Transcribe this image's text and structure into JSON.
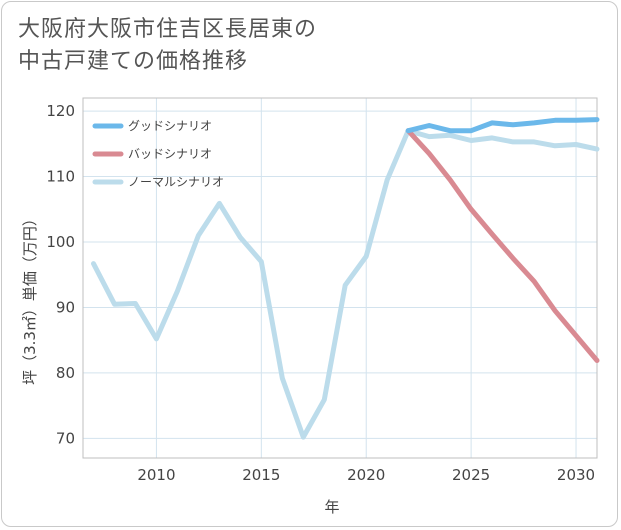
{
  "title": {
    "line1": "大阪府大阪市住吉区長居東の",
    "line2": "中古戸建ての価格推移"
  },
  "chart_data": {
    "type": "line",
    "title": "大阪府大阪市住吉区長居東の中古戸建ての価格推移",
    "xlabel": "年",
    "ylabel": "坪（3.3㎡）単価（万円）",
    "xlim": [
      2006.5,
      2031
    ],
    "ylim": [
      67,
      122
    ],
    "xticks": [
      2010,
      2015,
      2020,
      2025,
      2030
    ],
    "yticks": [
      70,
      80,
      90,
      100,
      110,
      120
    ],
    "grid": true,
    "legend_position": "top-left",
    "series": [
      {
        "name": "グッドシナリオ",
        "color": "#6bb8ea",
        "x": [
          2022,
          2023,
          2024,
          2025,
          2026,
          2027,
          2028,
          2029,
          2030,
          2031
        ],
        "y": [
          117,
          117.8,
          117,
          117,
          118.2,
          117.9,
          118.2,
          118.6,
          118.6,
          118.7
        ]
      },
      {
        "name": "バッドシナリオ",
        "color": "#d98a92",
        "x": [
          2022,
          2023,
          2024,
          2025,
          2026,
          2027,
          2028,
          2029,
          2030,
          2031
        ],
        "y": [
          117,
          113.5,
          109.5,
          105,
          101.2,
          97.5,
          94,
          89.5,
          85.7,
          81.9
        ]
      },
      {
        "name": "ノーマルシナリオ",
        "color": "#bcdceb",
        "x": [
          2007,
          2008,
          2009,
          2010,
          2011,
          2012,
          2013,
          2014,
          2015,
          2016,
          2017,
          2018,
          2019,
          2020,
          2021,
          2022,
          2023,
          2024,
          2025,
          2026,
          2027,
          2028,
          2029,
          2030,
          2031
        ],
        "y": [
          96.7,
          90.5,
          90.6,
          85.2,
          92.5,
          101,
          105.9,
          100.7,
          97,
          79.2,
          70.2,
          75.9,
          93.4,
          97.8,
          109.5,
          117,
          116.1,
          116.3,
          115.5,
          115.9,
          115.3,
          115.3,
          114.7,
          114.9,
          114.2
        ]
      }
    ]
  }
}
